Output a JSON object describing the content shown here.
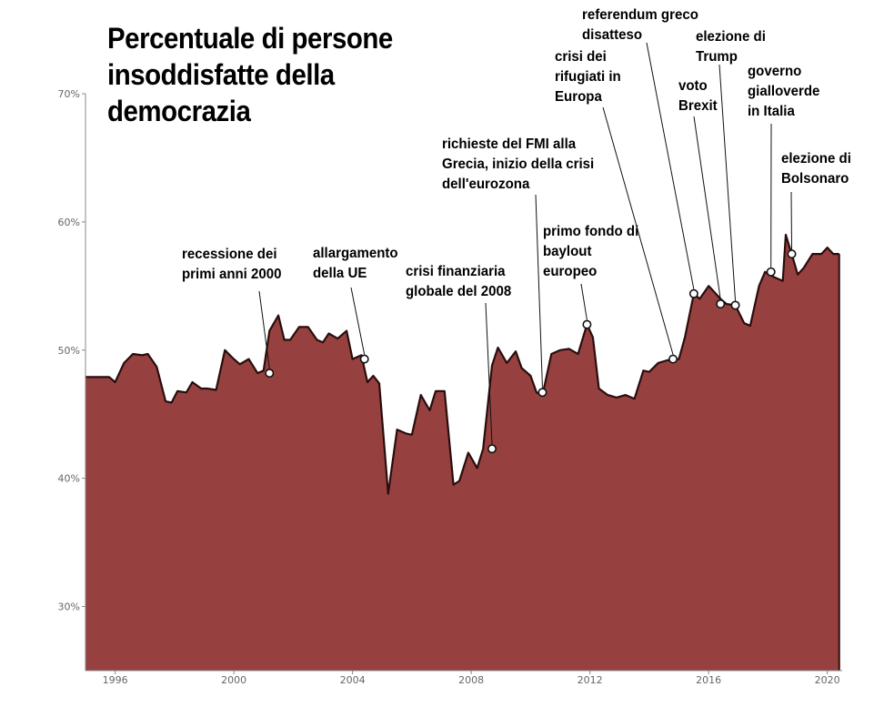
{
  "chart_data": {
    "type": "area",
    "title": [
      "Percentuale di persone",
      "insoddisfatte della",
      "democrazia"
    ],
    "xlim": [
      1995.0,
      2020.5
    ],
    "ylim": [
      25,
      70
    ],
    "y_ticks": [
      30,
      40,
      50,
      60,
      70
    ],
    "y_tick_labels": [
      "30%",
      "40%",
      "50%",
      "60%",
      "70%"
    ],
    "x_ticks": [
      1996,
      2000,
      2004,
      2008,
      2012,
      2016,
      2020
    ],
    "x_tick_labels": [
      "1996",
      "2000",
      "2004",
      "2008",
      "2012",
      "2016",
      "2020"
    ],
    "grid": false,
    "fill_color": "#96413f",
    "line_color": "#2a0d0d",
    "x": [
      1995.0,
      1995.5,
      1995.6,
      1995.8,
      1996.0,
      1996.3,
      1996.6,
      1996.9,
      1997.1,
      1997.4,
      1997.7,
      1997.9,
      1998.1,
      1998.4,
      1998.6,
      1998.9,
      1999.1,
      1999.4,
      1999.7,
      2000.0,
      2000.2,
      2000.5,
      2000.8,
      2001.0,
      2001.2,
      2001.5,
      2001.7,
      2001.9,
      2002.2,
      2002.5,
      2002.8,
      2003.0,
      2003.2,
      2003.5,
      2003.8,
      2004.0,
      2004.3,
      2004.5,
      2004.7,
      2004.9,
      2005.2,
      2005.5,
      2005.8,
      2006.0,
      2006.3,
      2006.6,
      2006.8,
      2007.1,
      2007.4,
      2007.6,
      2007.9,
      2008.2,
      2008.4,
      2008.7,
      2008.9,
      2009.2,
      2009.5,
      2009.7,
      2010.0,
      2010.2,
      2010.4,
      2010.7,
      2011.0,
      2011.3,
      2011.6,
      2011.9,
      2012.1,
      2012.3,
      2012.6,
      2012.9,
      2013.2,
      2013.5,
      2013.8,
      2014.0,
      2014.3,
      2014.6,
      2014.8,
      2015.0,
      2015.2,
      2015.5,
      2015.7,
      2016.0,
      2016.4,
      2016.6,
      2016.9,
      2017.2,
      2017.4,
      2017.7,
      2017.9,
      2018.2,
      2018.5,
      2018.6,
      2018.8,
      2019.0,
      2019.2,
      2019.5,
      2019.8,
      2020.0,
      2020.2,
      2020.4
    ],
    "y": [
      47.9,
      47.9,
      47.9,
      47.9,
      47.5,
      49.0,
      49.7,
      49.6,
      49.7,
      48.7,
      46.0,
      45.9,
      46.8,
      46.7,
      47.5,
      47.0,
      47.0,
      46.9,
      50.0,
      49.3,
      48.9,
      49.3,
      48.2,
      48.4,
      51.5,
      52.7,
      50.8,
      50.8,
      51.8,
      51.8,
      50.8,
      50.6,
      51.3,
      50.9,
      51.5,
      49.3,
      49.6,
      47.5,
      48.0,
      47.4,
      38.8,
      43.8,
      43.5,
      43.4,
      46.5,
      45.3,
      46.8,
      46.8,
      39.5,
      39.8,
      42.0,
      40.8,
      42.3,
      48.8,
      50.2,
      49.0,
      49.9,
      48.6,
      48.0,
      46.7,
      46.5,
      49.7,
      50.0,
      50.1,
      49.7,
      52.0,
      51.0,
      47.0,
      46.5,
      46.3,
      46.5,
      46.2,
      48.4,
      48.3,
      49.0,
      49.2,
      49.3,
      49.3,
      51.0,
      54.4,
      54.0,
      55.0,
      54.0,
      53.6,
      53.5,
      52.1,
      51.9,
      55.0,
      56.1,
      55.7,
      55.4,
      59.0,
      57.5,
      55.9,
      56.4,
      57.5,
      57.5,
      58.0,
      57.5,
      57.5
    ],
    "events": [
      {
        "x": 2001.2,
        "y": 48.2,
        "lines": [
          "recessione dei",
          "primi anni 2000"
        ]
      },
      {
        "x": 2004.4,
        "y": 49.3,
        "lines": [
          "allargamento",
          "della UE"
        ]
      },
      {
        "x": 2008.7,
        "y": 42.3,
        "lines": [
          "crisi finanziaria",
          "globale del 2008"
        ]
      },
      {
        "x": 2010.4,
        "y": 46.7,
        "lines": [
          "richieste del FMI alla",
          "Grecia, inizio della crisi",
          "dell'eurozona"
        ]
      },
      {
        "x": 2011.9,
        "y": 52.0,
        "lines": [
          "primo fondo di",
          "baylout",
          "europeo"
        ]
      },
      {
        "x": 2014.8,
        "y": 49.3,
        "lines": [
          "crisi dei",
          "rifugiati in",
          "Europa"
        ]
      },
      {
        "x": 2015.5,
        "y": 54.4,
        "lines": [
          "referendum greco",
          "disatteso"
        ]
      },
      {
        "x": 2016.4,
        "y": 53.6,
        "lines": [
          "voto",
          "Brexit"
        ]
      },
      {
        "x": 2016.9,
        "y": 53.5,
        "lines": [
          "elezione di",
          "Trump"
        ]
      },
      {
        "x": 2018.1,
        "y": 56.1,
        "lines": [
          "governo",
          "gialloverde",
          "in Italia"
        ]
      },
      {
        "x": 2018.8,
        "y": 57.5,
        "lines": [
          "elezione di",
          "Bolsonaro"
        ]
      }
    ]
  }
}
